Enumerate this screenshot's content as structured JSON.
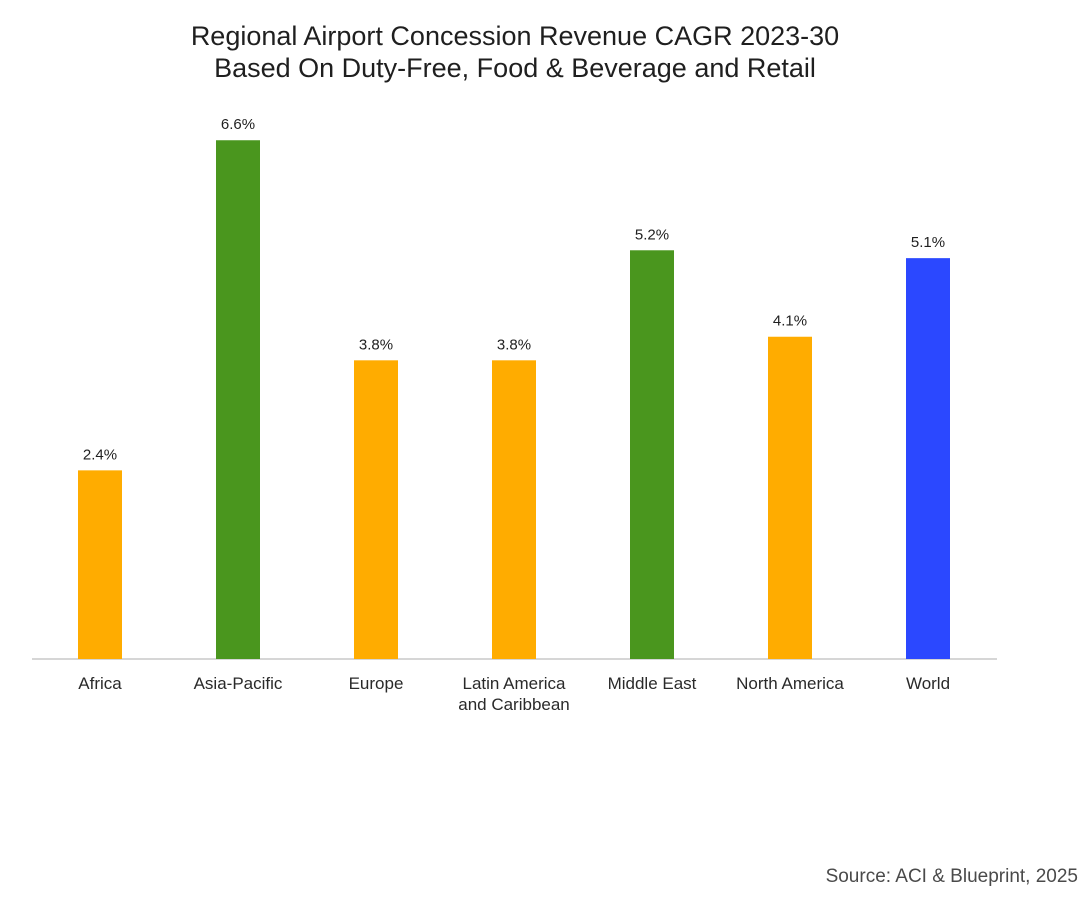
{
  "chart_data": {
    "type": "bar",
    "title": "Regional Airport Concession Revenue CAGR 2023-30",
    "subtitle": "Based On Duty-Free, Food & Beverage and Retail",
    "xlabel": "",
    "ylabel": "",
    "ylim": [
      0,
      7
    ],
    "grid": false,
    "legend": "none",
    "categories": [
      [
        "Africa"
      ],
      [
        "Asia-Pacific"
      ],
      [
        "Europe"
      ],
      [
        "Latin America",
        "and Caribbean"
      ],
      [
        "Middle East"
      ],
      [
        "North America"
      ],
      [
        "World"
      ]
    ],
    "values": [
      2.4,
      6.6,
      3.8,
      3.8,
      5.2,
      4.1,
      5.1
    ],
    "data_labels": [
      "2.4%",
      "6.6%",
      "3.8%",
      "3.8%",
      "5.2%",
      "4.1%",
      "5.1%"
    ],
    "colors": [
      "#FFAC00",
      "#4A961E",
      "#FFAC00",
      "#FFAC00",
      "#4A961E",
      "#FFAC00",
      "#2B48FF"
    ],
    "axis_color": "#C8C8C8"
  },
  "source": "Source: ACI & Blueprint, 2025"
}
